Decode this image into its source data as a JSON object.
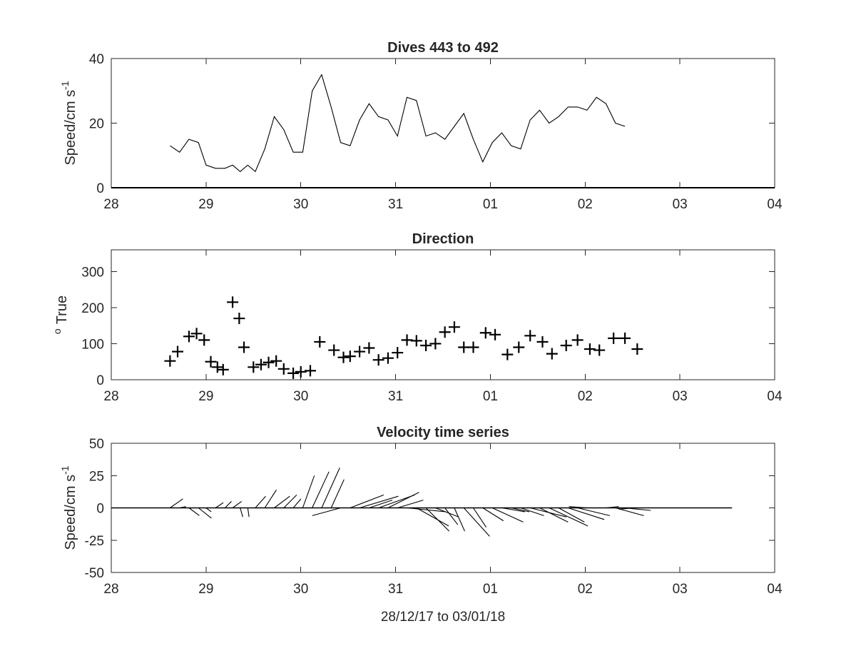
{
  "figure_xlabel": "28/12/17 to 03/01/18",
  "icons": [
    "plus-marker-icon"
  ],
  "chart_data": [
    {
      "type": "line",
      "title": "Dives 443 to 492",
      "ylabel": "Speed/cm s",
      "ylabel_sup": "-1",
      "xlabel": "",
      "x_ticks": [
        "28",
        "29",
        "30",
        "31",
        "01",
        "02",
        "03",
        "04"
      ],
      "xlim_days": [
        0,
        7
      ],
      "ylim": [
        0,
        40
      ],
      "y_ticks": [
        "0",
        "20",
        "40"
      ],
      "y_tick_values": [
        0,
        20,
        40
      ],
      "grid": false,
      "series": [
        {
          "x_days": [
            0.62,
            0.72,
            0.82,
            0.92,
            1.0,
            1.1,
            1.2,
            1.28,
            1.36,
            1.44,
            1.52,
            1.62,
            1.72,
            1.82,
            1.92,
            2.02,
            2.12,
            2.22,
            2.32,
            2.42,
            2.52,
            2.62,
            2.72,
            2.82,
            2.92,
            3.02,
            3.12,
            3.22,
            3.32,
            3.42,
            3.52,
            3.62,
            3.72,
            3.82,
            3.92,
            4.02,
            4.12,
            4.22,
            4.32,
            4.42,
            4.52,
            4.62,
            4.72,
            4.82,
            4.92,
            5.02,
            5.12,
            5.22,
            5.32,
            5.42,
            5.52,
            5.62,
            5.72,
            5.82,
            5.92,
            6.02,
            6.12,
            6.22
          ],
          "values": [
            13,
            11,
            15,
            14,
            7,
            6,
            6,
            7,
            5,
            7,
            5,
            12,
            22,
            18,
            11,
            11,
            30,
            35,
            25,
            14,
            13,
            21,
            26,
            22,
            21,
            16,
            28,
            27,
            16,
            17,
            15,
            19,
            23,
            15,
            8,
            14,
            17,
            13,
            12,
            21,
            24,
            20,
            22,
            25,
            25,
            24,
            28,
            26,
            20,
            19,
            null,
            null,
            null,
            null,
            null,
            null,
            null,
            null
          ]
        }
      ]
    },
    {
      "type": "scatter",
      "title": "Direction",
      "ylabel": "True",
      "ylabel_sup": "o",
      "xlabel": "",
      "x_ticks": [
        "28",
        "29",
        "30",
        "31",
        "01",
        "02",
        "03",
        "04"
      ],
      "xlim_days": [
        0,
        7
      ],
      "ylim": [
        0,
        360
      ],
      "y_ticks": [
        "0",
        "100",
        "200",
        "300"
      ],
      "y_tick_values": [
        0,
        100,
        200,
        300
      ],
      "grid": false,
      "marker": "+",
      "series": [
        {
          "x_days": [
            0.62,
            0.7,
            0.82,
            0.9,
            0.98,
            1.05,
            1.12,
            1.18,
            1.28,
            1.35,
            1.4,
            1.5,
            1.58,
            1.66,
            1.74,
            1.82,
            1.92,
            2.0,
            2.1,
            2.2,
            2.35,
            2.45,
            2.52,
            2.62,
            2.72,
            2.82,
            2.92,
            3.02,
            3.12,
            3.22,
            3.32,
            3.42,
            3.52,
            3.62,
            3.72,
            3.82,
            3.95,
            4.05,
            4.18,
            4.3,
            4.42,
            4.55,
            4.65,
            4.8,
            4.92,
            5.05,
            5.15,
            5.3,
            5.42,
            5.55,
            5.68,
            5.8,
            5.95,
            6.05,
            6.18,
            6.3
          ],
          "values": [
            52,
            78,
            120,
            128,
            110,
            50,
            35,
            28,
            215,
            170,
            90,
            35,
            42,
            48,
            52,
            30,
            18,
            22,
            25,
            105,
            82,
            62,
            65,
            78,
            88,
            55,
            60,
            75,
            110,
            108,
            95,
            100,
            132,
            146,
            90,
            90,
            130,
            125,
            70,
            90,
            122,
            105,
            72,
            95,
            110,
            85,
            82,
            115,
            115,
            85,
            null,
            null,
            null,
            null,
            null,
            null
          ]
        }
      ]
    },
    {
      "type": "quiver",
      "title": "Velocity time series",
      "ylabel": "Speed/cm s",
      "ylabel_sup": "-1",
      "xlabel": "28/12/17 to 03/01/18",
      "x_ticks": [
        "28",
        "29",
        "30",
        "31",
        "01",
        "02",
        "03",
        "04"
      ],
      "xlim_days": [
        0,
        7
      ],
      "ylim": [
        -50,
        50
      ],
      "y_ticks": [
        "50",
        "25",
        "0",
        "-25",
        "-50"
      ],
      "y_tick_values": [
        50,
        25,
        0,
        -25,
        -50
      ],
      "grid": false,
      "baseline_end_days": 6.55,
      "series": [
        {
          "x_days": [
            0.62,
            0.72,
            0.82,
            0.92,
            1.0,
            1.1,
            1.2,
            1.28,
            1.36,
            1.44,
            1.52,
            1.62,
            1.72,
            1.82,
            1.92,
            2.02,
            2.12,
            2.22,
            2.32,
            2.42,
            2.52,
            2.62,
            2.72,
            2.82,
            2.92,
            3.02,
            3.12,
            3.22,
            3.32,
            3.42,
            3.52,
            3.62,
            3.72,
            3.82,
            3.92,
            4.02,
            4.12,
            4.22,
            4.32,
            4.42,
            4.52,
            4.62,
            4.72,
            4.82,
            4.92,
            5.02,
            5.12,
            5.22,
            5.32,
            5.42,
            5.52
          ],
          "u": [
            10,
            5,
            8,
            10,
            4,
            6,
            5,
            7,
            2,
            1,
            8,
            9,
            12,
            10,
            6,
            9,
            13,
            14,
            10,
            -22,
            26,
            30,
            18,
            28,
            24,
            20,
            30,
            25,
            18,
            18,
            10,
            8,
            20,
            10,
            16,
            24,
            18,
            14,
            18,
            28,
            22,
            30,
            20,
            28,
            25,
            -14,
            18,
            10,
            22,
            20,
            -12
          ],
          "v": [
            7,
            1,
            -6,
            -8,
            -3,
            4,
            5,
            5,
            -7,
            -7,
            9,
            14,
            9,
            10,
            7,
            25,
            28,
            31,
            22,
            -6,
            10,
            9,
            6,
            10,
            12,
            6,
            -3,
            -14,
            -18,
            -7,
            -13,
            -18,
            -22,
            -15,
            -10,
            -11,
            -3,
            -3,
            -6,
            -7,
            -11,
            -14,
            -11,
            -9,
            -6,
            1,
            0,
            1,
            -6,
            -2,
            -1
          ]
        }
      ]
    }
  ]
}
